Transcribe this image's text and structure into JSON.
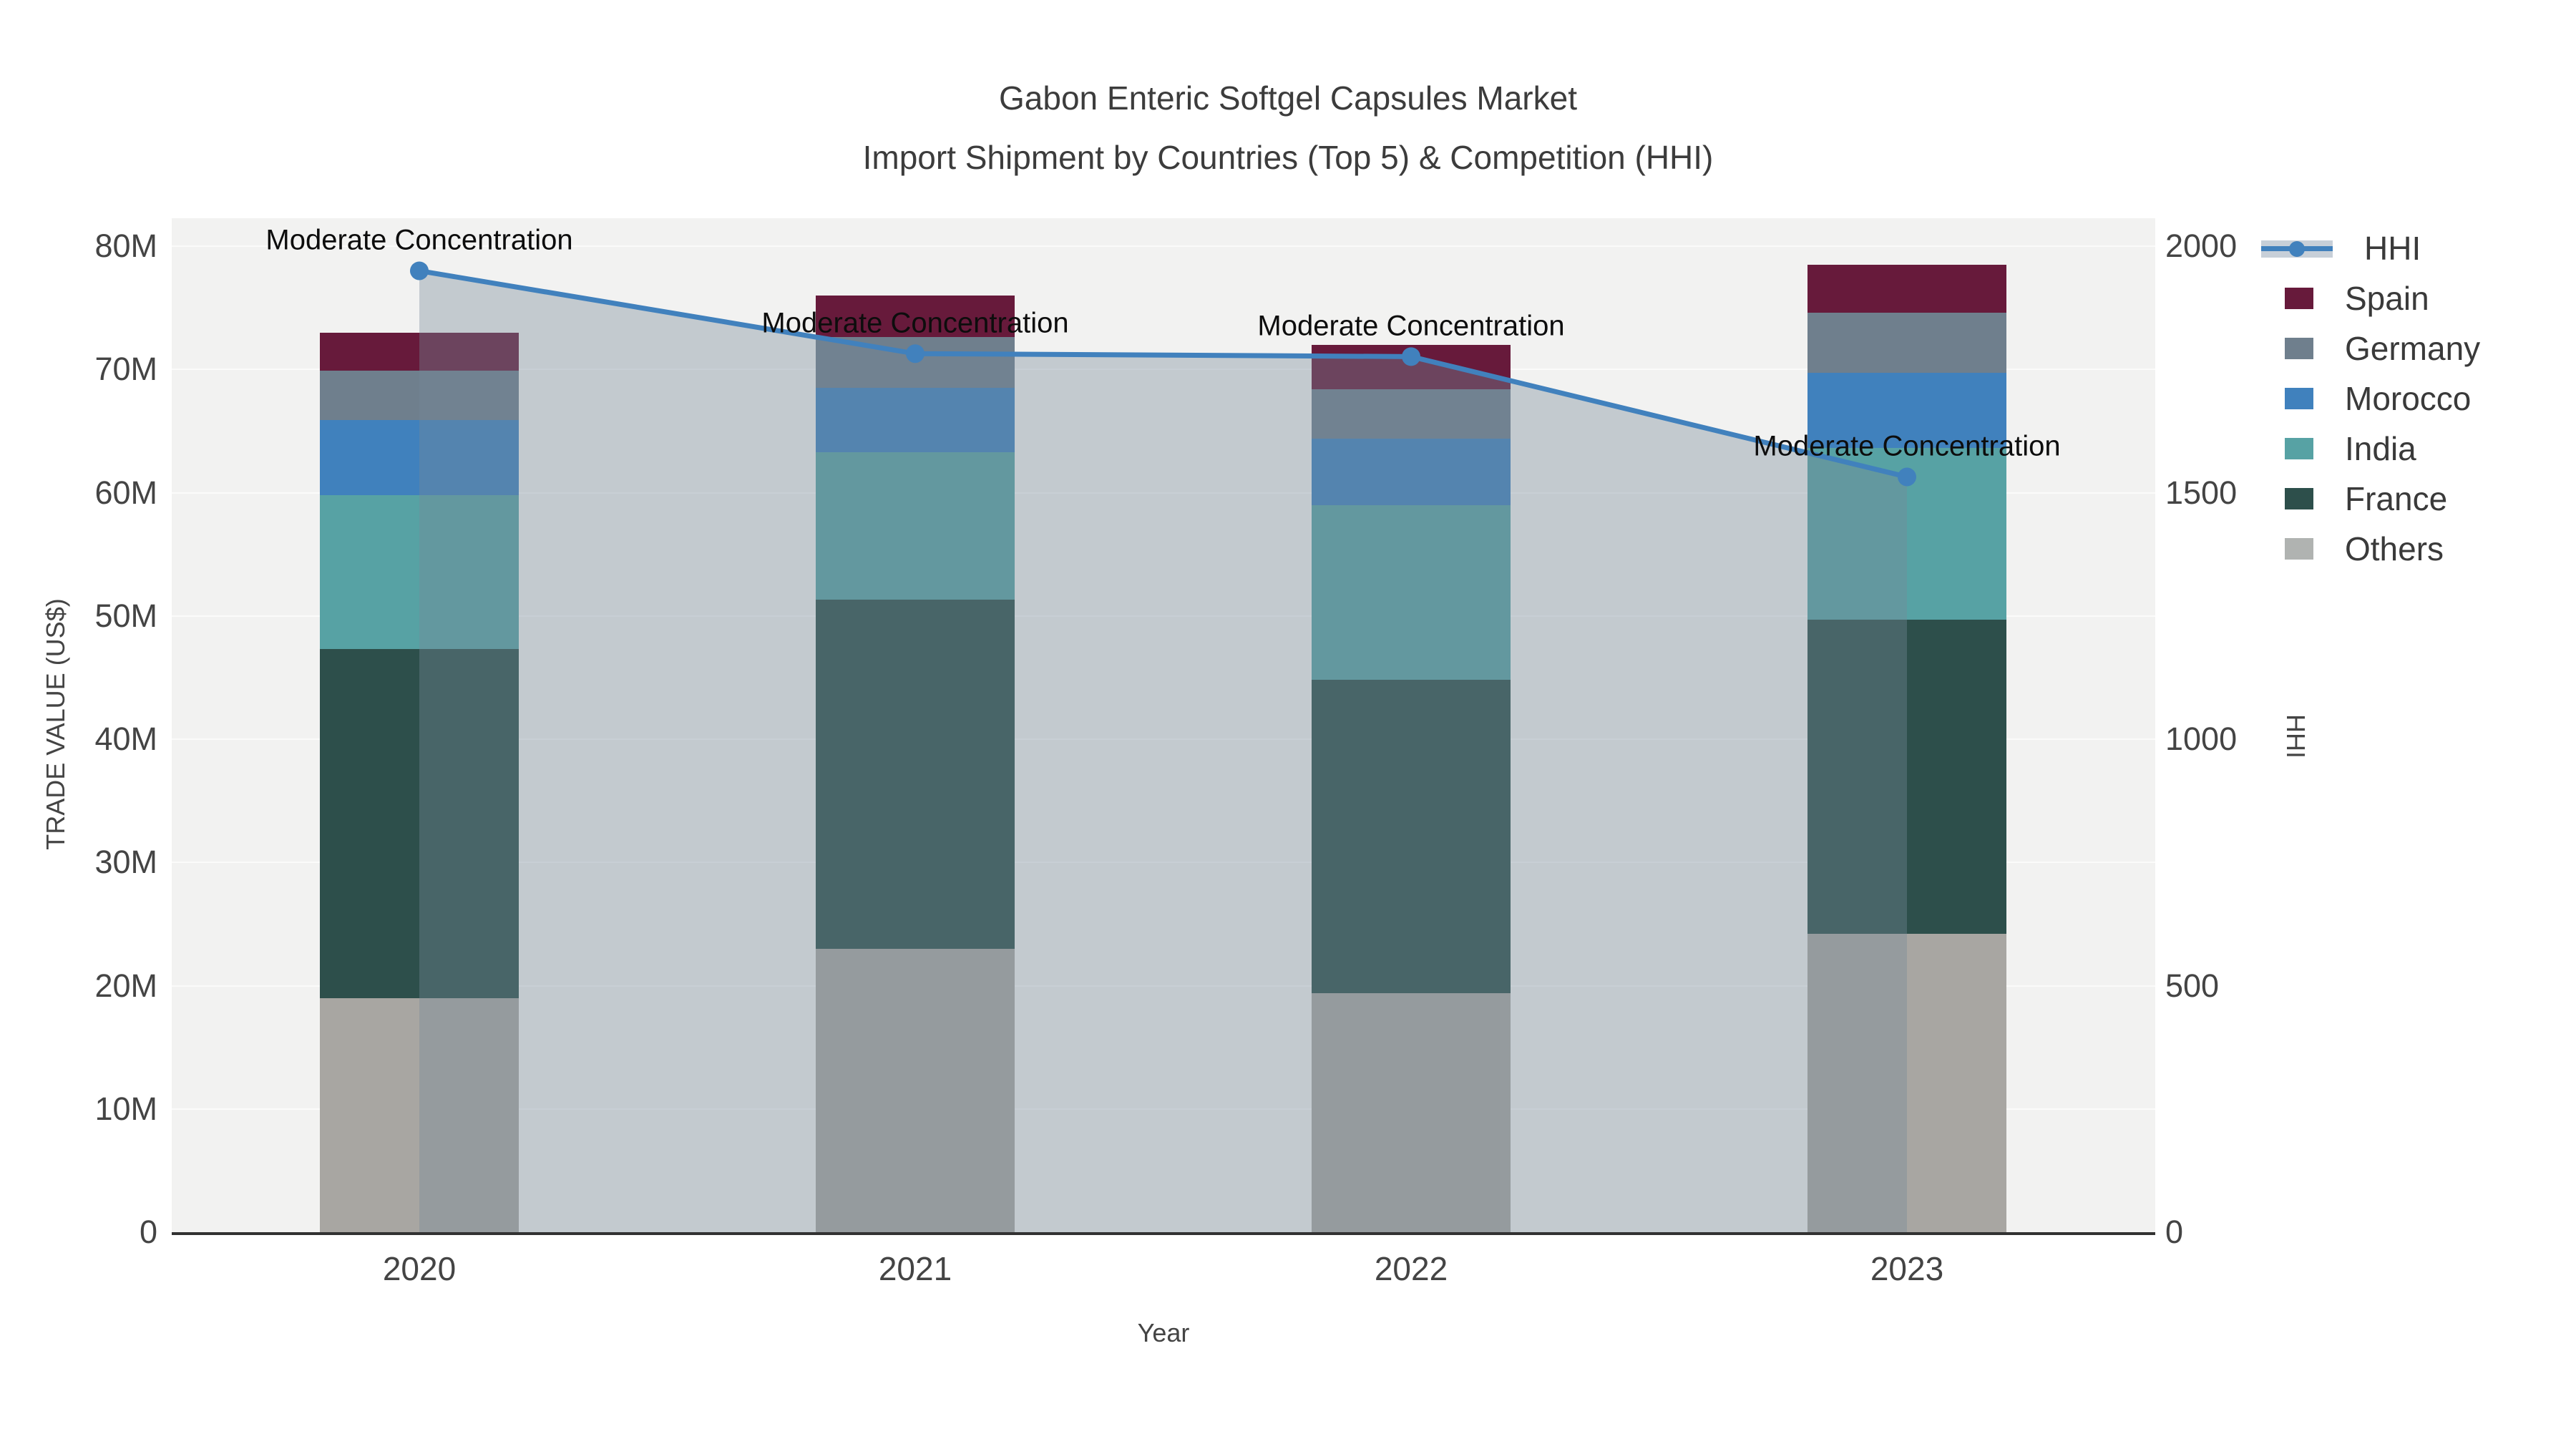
{
  "title": {
    "line1": "Gabon Enteric Softgel Capsules Market",
    "line2": "Import Shipment by Countries (Top 5) & Competition (HHI)"
  },
  "axes": {
    "y_left": {
      "label": "TRADE VALUE (US$)",
      "tick_labels": [
        "0",
        "10M",
        "20M",
        "30M",
        "40M",
        "50M",
        "60M",
        "70M",
        "80M"
      ],
      "tick_values": [
        0,
        10,
        20,
        30,
        40,
        50,
        60,
        70,
        80
      ],
      "max": 80
    },
    "y_right": {
      "label": "HHI",
      "tick_labels": [
        "0",
        "500",
        "1000",
        "1500",
        "2000"
      ],
      "tick_values": [
        0,
        500,
        1000,
        1500,
        2000
      ],
      "max": 2000
    },
    "x": {
      "label": "Year",
      "categories": [
        "2020",
        "2021",
        "2022",
        "2023"
      ]
    }
  },
  "chart_data": {
    "type": "combo(stacked-bar + line-area on secondary axis)",
    "categories": [
      "2020",
      "2021",
      "2022",
      "2023"
    ],
    "ylabel_left": "TRADE VALUE (US$)",
    "ylabel_right": "HHI",
    "ylim_left": [
      0,
      80
    ],
    "ylim_right": [
      0,
      2000
    ],
    "grid": true,
    "legend_position": "right",
    "series": [
      {
        "name": "Others",
        "color": "#a8a6a2",
        "values": [
          19.0,
          23.0,
          19.4,
          24.2
        ]
      },
      {
        "name": "France",
        "color": "#2d4f4b",
        "values": [
          28.3,
          28.3,
          25.4,
          25.5
        ]
      },
      {
        "name": "India",
        "color": "#57a2a4",
        "values": [
          12.5,
          12.0,
          14.2,
          13.9
        ]
      },
      {
        "name": "Morocco",
        "color": "#4081bd",
        "values": [
          6.1,
          5.2,
          5.4,
          6.1
        ]
      },
      {
        "name": "Germany",
        "color": "#6f7f8d",
        "values": [
          4.0,
          4.1,
          4.0,
          4.9
        ]
      },
      {
        "name": "Spain",
        "color": "#671a3b",
        "values": [
          3.1,
          3.4,
          3.6,
          3.9
        ]
      }
    ],
    "bar_totals": [
      73.0,
      76.0,
      72.0,
      78.5
    ],
    "line_series": {
      "name": "HHI",
      "axis": "right",
      "color": "#4181bd",
      "area_fill_color": "rgba(119,136,153,0.38)",
      "values": [
        1950,
        1782,
        1776,
        1532
      ]
    },
    "annotations": [
      {
        "text": "Moderate Concentration",
        "category": "2020"
      },
      {
        "text": "Moderate Concentration",
        "category": "2021"
      },
      {
        "text": "Moderate Concentration",
        "category": "2022"
      },
      {
        "text": "Moderate Concentration",
        "category": "2023"
      }
    ]
  },
  "legend": {
    "items": [
      {
        "label": "HHI",
        "kind": "line",
        "color": "#4181bd"
      },
      {
        "label": "Spain",
        "kind": "box",
        "color": "#671a3b"
      },
      {
        "label": "Germany",
        "kind": "box",
        "color": "#6f7f8d"
      },
      {
        "label": "Morocco",
        "kind": "box",
        "color": "#4081bd"
      },
      {
        "label": "India",
        "kind": "box",
        "color": "#57a2a4"
      },
      {
        "label": "France",
        "kind": "box",
        "color": "#2d4f4b"
      },
      {
        "label": "Others",
        "kind": "box",
        "color": "#b0b3b1"
      }
    ]
  },
  "colors": {
    "plot_background": "#f2f2f1",
    "gridline": "#fbfbfa",
    "axis_line": "#323232",
    "tick_text": "#444444",
    "title_text": "#3c3c3c",
    "annotation_text": "#0d0d0d"
  }
}
